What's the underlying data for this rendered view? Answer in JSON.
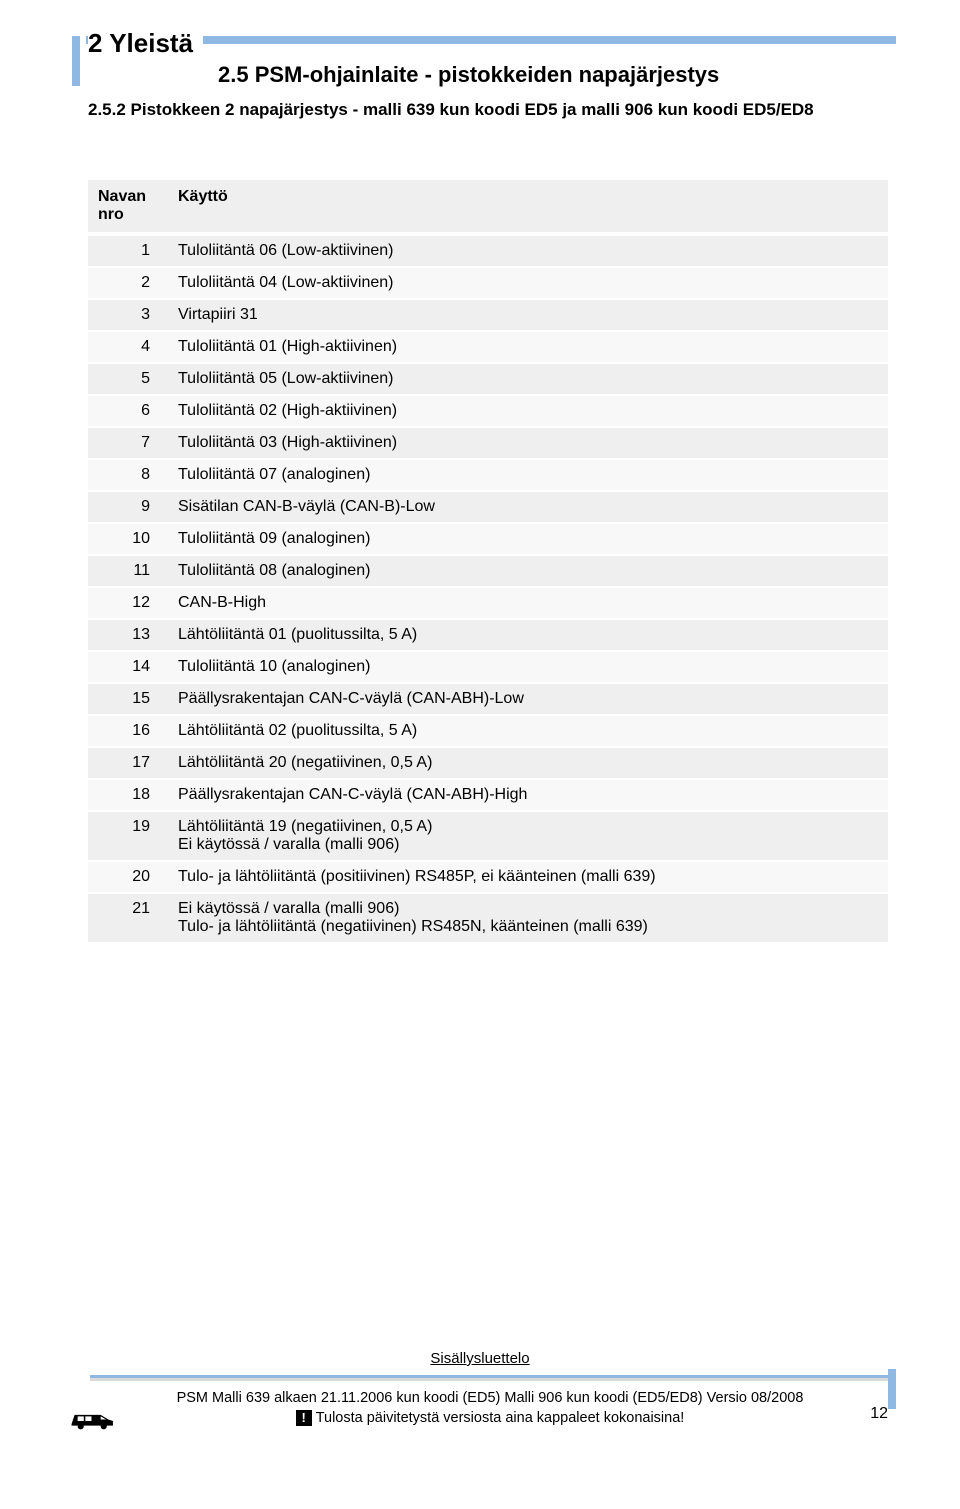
{
  "colors": {
    "accent": "#8fb9e3",
    "row_odd": "#efefef",
    "row_even": "#f8f8f8",
    "text": "#000000",
    "background": "#ffffff"
  },
  "heading": "2 Yleistä",
  "subheading": "2.5 PSM-ohjainlaite - pistokkeiden napajärjestys",
  "subsection": "2.5.2 Pistokkeen 2 napajärjestys - malli 639 kun koodi ED5 ja malli 906 kun koodi ED5/ED8",
  "table": {
    "header": {
      "col1": "Navan\nnro",
      "col2": "Käyttö"
    },
    "rows": [
      {
        "n": "1",
        "v": "Tuloliitäntä 06 (Low-aktiivinen)"
      },
      {
        "n": "2",
        "v": "Tuloliitäntä 04 (Low-aktiivinen)"
      },
      {
        "n": "3",
        "v": "Virtapiiri 31"
      },
      {
        "n": "4",
        "v": "Tuloliitäntä 01 (High-aktiivinen)"
      },
      {
        "n": "5",
        "v": "Tuloliitäntä 05 (Low-aktiivinen)"
      },
      {
        "n": "6",
        "v": "Tuloliitäntä 02 (High-aktiivinen)"
      },
      {
        "n": "7",
        "v": "Tuloliitäntä 03 (High-aktiivinen)"
      },
      {
        "n": "8",
        "v": "Tuloliitäntä 07 (analoginen)"
      },
      {
        "n": "9",
        "v": "Sisätilan CAN-B-väylä (CAN-B)-Low"
      },
      {
        "n": "10",
        "v": "Tuloliitäntä 09 (analoginen)"
      },
      {
        "n": "11",
        "v": "Tuloliitäntä 08 (analoginen)"
      },
      {
        "n": "12",
        "v": "CAN-B-High"
      },
      {
        "n": "13",
        "v": "Lähtöliitäntä 01 (puolitussilta, 5 A)"
      },
      {
        "n": "14",
        "v": "Tuloliitäntä 10 (analoginen)"
      },
      {
        "n": "15",
        "v": "Päällysrakentajan CAN-C-väylä (CAN-ABH)-Low"
      },
      {
        "n": "16",
        "v": "Lähtöliitäntä 02 (puolitussilta, 5 A)"
      },
      {
        "n": "17",
        "v": "Lähtöliitäntä 20 (negatiivinen, 0,5 A)"
      },
      {
        "n": "18",
        "v": "Päällysrakentajan CAN-C-väylä (CAN-ABH)-High"
      },
      {
        "n": "19",
        "v": "Lähtöliitäntä 19 (negatiivinen, 0,5 A)\nEi käytössä / varalla (malli 906)"
      },
      {
        "n": "20",
        "v": "Tulo- ja lähtöliitäntä (positiivinen) RS485P, ei käänteinen (malli 639)"
      },
      {
        "n": "21",
        "v": "Ei käytössä / varalla (malli 906)\nTulo- ja lähtöliitäntä (negatiivinen) RS485N, käänteinen (malli 639)"
      }
    ]
  },
  "toc_link": "Sisällysluettelo",
  "footer": {
    "line1": "PSM Malli 639 alkaen 21.11.2006 kun koodi (ED5) Malli 906 kun koodi (ED5/ED8) Versio 08/2008",
    "line2": "Tulosta päivitetystä versiosta aina kappaleet kokonaisina!",
    "page": "12"
  }
}
